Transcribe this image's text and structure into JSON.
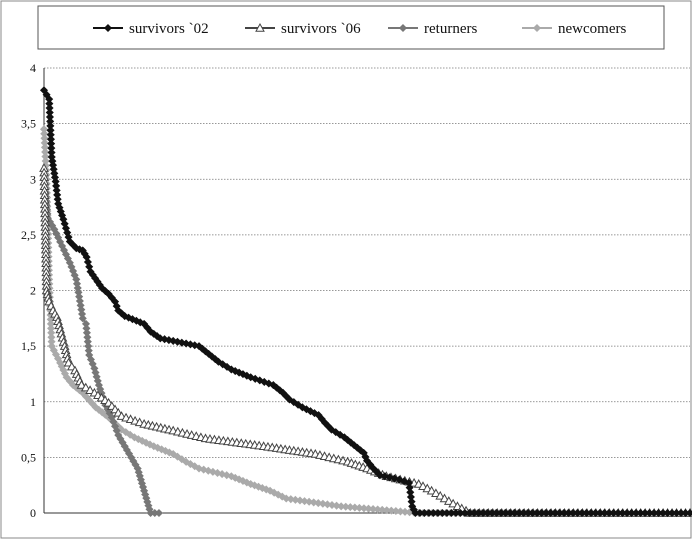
{
  "chart_data": {
    "type": "line",
    "title": "",
    "xlabel": "",
    "ylabel": "",
    "ylim": [
      0,
      4
    ],
    "xlim": [
      0,
      1
    ],
    "y_ticks": [
      "0",
      "0,5",
      "1",
      "1,5",
      "2",
      "2,5",
      "3",
      "3,5",
      "4"
    ],
    "grid": "horizontal dotted",
    "legend_position": "top",
    "series": [
      {
        "name": "survivors `02",
        "color": "#111111",
        "marker": "diamond-filled",
        "points": [
          [
            0.0,
            3.8
          ],
          [
            0.008,
            3.72
          ],
          [
            0.012,
            3.2
          ],
          [
            0.018,
            2.98
          ],
          [
            0.022,
            2.78
          ],
          [
            0.03,
            2.64
          ],
          [
            0.034,
            2.56
          ],
          [
            0.04,
            2.44
          ],
          [
            0.05,
            2.38
          ],
          [
            0.06,
            2.36
          ],
          [
            0.066,
            2.3
          ],
          [
            0.072,
            2.17
          ],
          [
            0.09,
            2.02
          ],
          [
            0.1,
            1.97
          ],
          [
            0.11,
            1.9
          ],
          [
            0.115,
            1.82
          ],
          [
            0.125,
            1.77
          ],
          [
            0.155,
            1.7
          ],
          [
            0.165,
            1.63
          ],
          [
            0.18,
            1.57
          ],
          [
            0.24,
            1.5
          ],
          [
            0.255,
            1.43
          ],
          [
            0.27,
            1.36
          ],
          [
            0.29,
            1.29
          ],
          [
            0.32,
            1.22
          ],
          [
            0.355,
            1.15
          ],
          [
            0.37,
            1.08
          ],
          [
            0.38,
            1.02
          ],
          [
            0.4,
            0.95
          ],
          [
            0.425,
            0.88
          ],
          [
            0.435,
            0.81
          ],
          [
            0.445,
            0.75
          ],
          [
            0.465,
            0.68
          ],
          [
            0.48,
            0.61
          ],
          [
            0.495,
            0.54
          ],
          [
            0.5,
            0.47
          ],
          [
            0.51,
            0.4
          ],
          [
            0.52,
            0.34
          ],
          [
            0.55,
            0.3
          ],
          [
            0.565,
            0.27
          ],
          [
            0.57,
            0.06
          ],
          [
            0.575,
            0.0
          ],
          [
            1.0,
            0.0
          ]
        ]
      },
      {
        "name": "survivors `06",
        "color": "#444444",
        "marker": "triangle-open",
        "points": [
          [
            0.0,
            3.1
          ],
          [
            0.004,
            2.0
          ],
          [
            0.008,
            1.9
          ],
          [
            0.014,
            1.82
          ],
          [
            0.02,
            1.76
          ],
          [
            0.032,
            1.5
          ],
          [
            0.038,
            1.35
          ],
          [
            0.048,
            1.28
          ],
          [
            0.058,
            1.15
          ],
          [
            0.078,
            1.08
          ],
          [
            0.1,
            0.99
          ],
          [
            0.11,
            0.93
          ],
          [
            0.12,
            0.87
          ],
          [
            0.155,
            0.8
          ],
          [
            0.2,
            0.74
          ],
          [
            0.25,
            0.67
          ],
          [
            0.34,
            0.6
          ],
          [
            0.42,
            0.53
          ],
          [
            0.47,
            0.46
          ],
          [
            0.5,
            0.4
          ],
          [
            0.53,
            0.33
          ],
          [
            0.58,
            0.26
          ],
          [
            0.6,
            0.2
          ],
          [
            0.62,
            0.13
          ],
          [
            0.64,
            0.06
          ],
          [
            0.66,
            0.0
          ],
          [
            1.0,
            0.0
          ]
        ]
      },
      {
        "name": "returners",
        "color": "#777777",
        "marker": "diamond-filled",
        "points": [
          [
            0.0,
            3.0
          ],
          [
            0.006,
            2.65
          ],
          [
            0.016,
            2.55
          ],
          [
            0.028,
            2.4
          ],
          [
            0.04,
            2.25
          ],
          [
            0.05,
            2.1
          ],
          [
            0.06,
            1.75
          ],
          [
            0.065,
            1.7
          ],
          [
            0.07,
            1.42
          ],
          [
            0.078,
            1.3
          ],
          [
            0.085,
            1.15
          ],
          [
            0.095,
            0.97
          ],
          [
            0.105,
            0.86
          ],
          [
            0.115,
            0.7
          ],
          [
            0.125,
            0.6
          ],
          [
            0.135,
            0.5
          ],
          [
            0.145,
            0.4
          ],
          [
            0.15,
            0.3
          ],
          [
            0.155,
            0.2
          ],
          [
            0.16,
            0.1
          ],
          [
            0.165,
            0.0
          ],
          [
            0.178,
            0.0
          ]
        ]
      },
      {
        "name": "newcomers",
        "color": "#aaaaaa",
        "marker": "diamond-filled",
        "points": [
          [
            0.0,
            3.45
          ],
          [
            0.004,
            3.0
          ],
          [
            0.008,
            2.1
          ],
          [
            0.012,
            1.5
          ],
          [
            0.025,
            1.35
          ],
          [
            0.035,
            1.22
          ],
          [
            0.045,
            1.15
          ],
          [
            0.06,
            1.08
          ],
          [
            0.08,
            0.95
          ],
          [
            0.1,
            0.86
          ],
          [
            0.12,
            0.75
          ],
          [
            0.14,
            0.68
          ],
          [
            0.17,
            0.6
          ],
          [
            0.2,
            0.53
          ],
          [
            0.22,
            0.46
          ],
          [
            0.24,
            0.4
          ],
          [
            0.29,
            0.33
          ],
          [
            0.32,
            0.26
          ],
          [
            0.35,
            0.2
          ],
          [
            0.375,
            0.13
          ],
          [
            0.46,
            0.06
          ],
          [
            0.58,
            0.0
          ],
          [
            1.0,
            0.0
          ]
        ]
      }
    ]
  }
}
